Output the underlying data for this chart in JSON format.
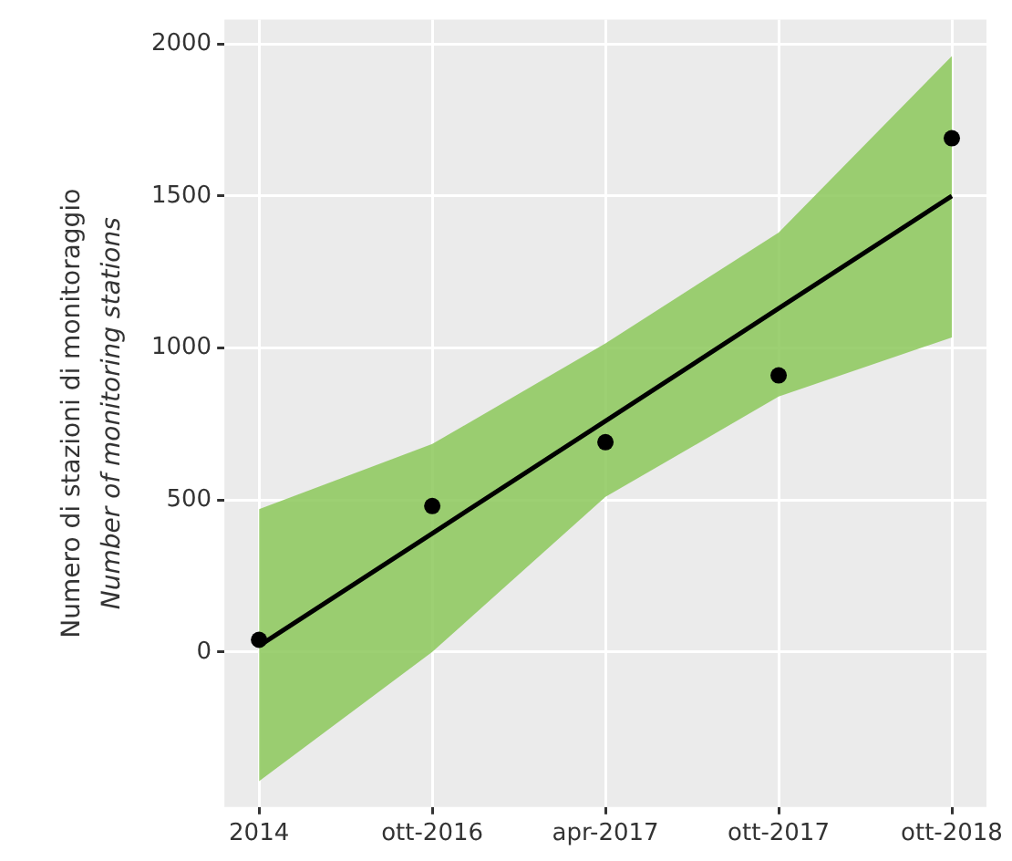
{
  "chart_data": {
    "type": "scatter",
    "ylabel": "Numero di stazioni di monitoraggio\nNumber of monitoring stations",
    "categories": [
      "2014",
      "ott-2016",
      "apr-2017",
      "ott-2017",
      "ott-2018"
    ],
    "series": [
      {
        "type": "scatter",
        "color": "#000000",
        "marker": "circle",
        "values": [
          40,
          480,
          690,
          910,
          1690
        ]
      },
      {
        "type": "line",
        "color": "#000000",
        "marker": "none",
        "values": [
          20,
          390,
          760,
          1130,
          1500
        ],
        "lower": [
          -425,
          0,
          510,
          840,
          1035
        ],
        "upper": [
          470,
          684,
          1015,
          1380,
          1960
        ]
      }
    ],
    "ylim": [
      -510,
      2080
    ],
    "yticks": [
      0,
      500,
      1000,
      1500,
      2000
    ],
    "grid": true,
    "legend": false
  }
}
